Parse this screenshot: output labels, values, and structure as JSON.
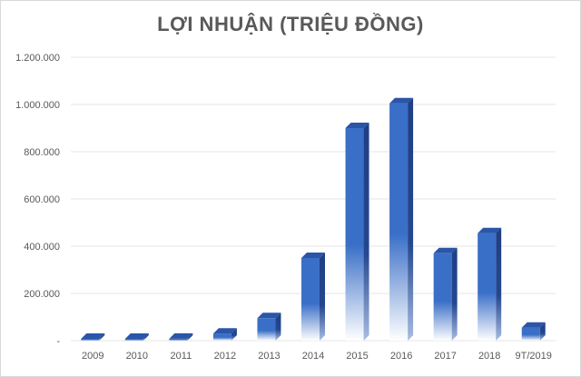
{
  "chart_data": {
    "type": "bar",
    "title": "LỢI NHUẬN (TRIỆU ĐỒNG)",
    "categories": [
      "2009",
      "2010",
      "2011",
      "2012",
      "2013",
      "2014",
      "2015",
      "2016",
      "2017",
      "2018",
      "9T/2019"
    ],
    "values": [
      0,
      3000,
      8000,
      30000,
      95000,
      350000,
      900000,
      1005000,
      370000,
      455000,
      55000
    ],
    "ylim": [
      0,
      1200000
    ],
    "yticks": [
      0,
      200000,
      400000,
      600000,
      800000,
      1000000,
      1200000
    ],
    "ytick_labels": [
      "-",
      "200.000",
      "400.000",
      "600.000",
      "800.000",
      "1.000.000",
      "1.200.000"
    ],
    "grid": true,
    "bar_color": "#3a6fc7",
    "bar_side_color": "#1f3f85",
    "bar_top_color": "#2a55a8"
  }
}
